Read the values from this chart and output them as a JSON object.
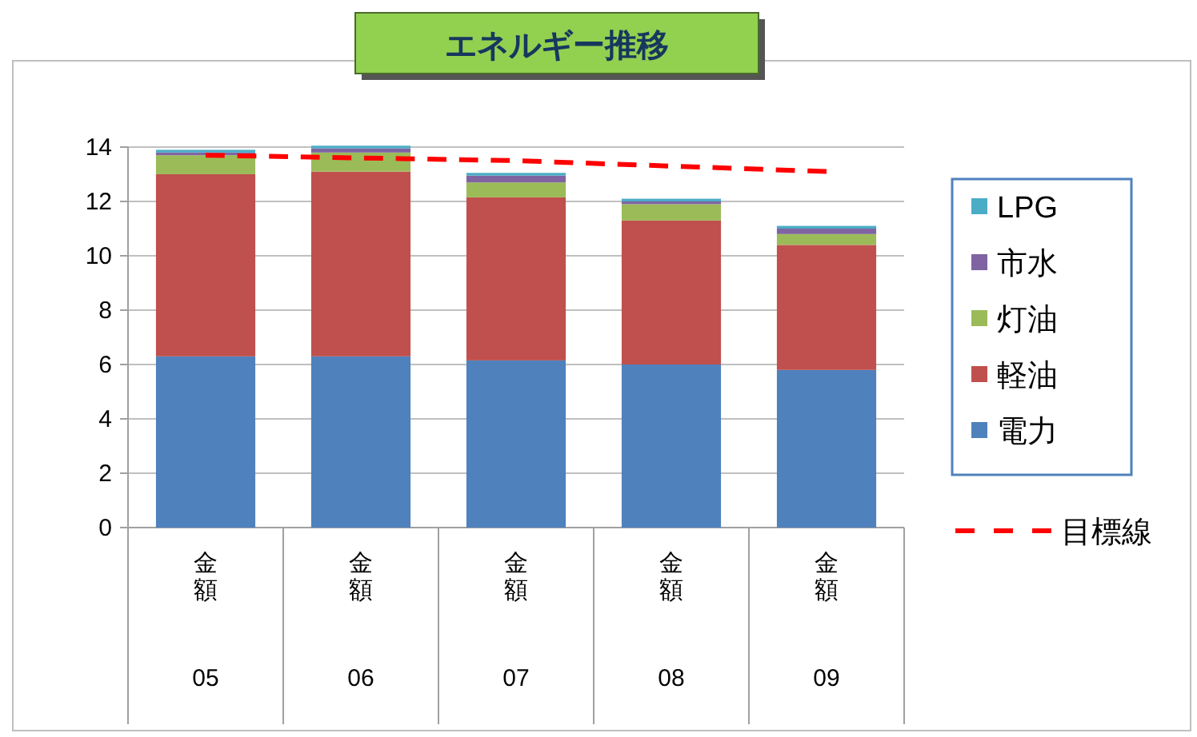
{
  "chart_data": {
    "type": "bar",
    "title": "エネルギー推移",
    "stacked": true,
    "categories": [
      "金額\n05",
      "金額\n06",
      "金額\n07",
      "金額\n08",
      "金額\n09"
    ],
    "series": [
      {
        "name": "電力",
        "color": "#4f81bd",
        "values": [
          6.3,
          6.3,
          6.15,
          6.0,
          5.8
        ]
      },
      {
        "name": "軽油",
        "color": "#c0504d",
        "values": [
          6.7,
          6.8,
          6.0,
          5.3,
          4.6
        ]
      },
      {
        "name": "灯油",
        "color": "#9bbb59",
        "values": [
          0.7,
          0.7,
          0.55,
          0.6,
          0.4
        ]
      },
      {
        "name": "市水",
        "color": "#8064a2",
        "values": [
          0.1,
          0.15,
          0.25,
          0.1,
          0.2
        ]
      },
      {
        "name": "LPG",
        "color": "#4bacc6",
        "values": [
          0.1,
          0.1,
          0.1,
          0.1,
          0.1
        ]
      },
      {
        "name": "目標線",
        "type": "line",
        "color": "#ff0000",
        "line_style": "dashed",
        "marker": "none",
        "values": [
          13.7,
          13.6,
          13.5,
          13.3,
          13.1
        ]
      }
    ],
    "ylim": [
      0,
      14
    ],
    "yticks": [
      0,
      2,
      4,
      6,
      8,
      10,
      12,
      14
    ],
    "grid": "y",
    "legend": "right"
  }
}
